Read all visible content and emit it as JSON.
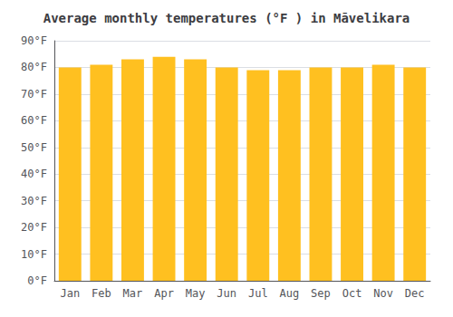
{
  "chart_data": {
    "type": "bar",
    "title": "Average monthly temperatures (°F ) in Māvelikara",
    "categories": [
      "Jan",
      "Feb",
      "Mar",
      "Apr",
      "May",
      "Jun",
      "Jul",
      "Aug",
      "Sep",
      "Oct",
      "Nov",
      "Dec"
    ],
    "values": [
      80,
      81,
      83,
      84,
      83,
      80,
      79,
      79,
      80,
      80,
      81,
      80
    ],
    "color": "#FFC020",
    "ylim": [
      0,
      90
    ],
    "yticks": [
      {
        "value": 0,
        "label": "0°F"
      },
      {
        "value": 10,
        "label": "10°F"
      },
      {
        "value": 20,
        "label": "20°F"
      },
      {
        "value": 30,
        "label": "30°F"
      },
      {
        "value": 40,
        "label": "40°F"
      },
      {
        "value": 50,
        "label": "50°F"
      },
      {
        "value": 60,
        "label": "60°F"
      },
      {
        "value": 70,
        "label": "70°F"
      },
      {
        "value": 80,
        "label": "80°F"
      },
      {
        "value": 90,
        "label": "90°F"
      }
    ],
    "grid": true
  }
}
